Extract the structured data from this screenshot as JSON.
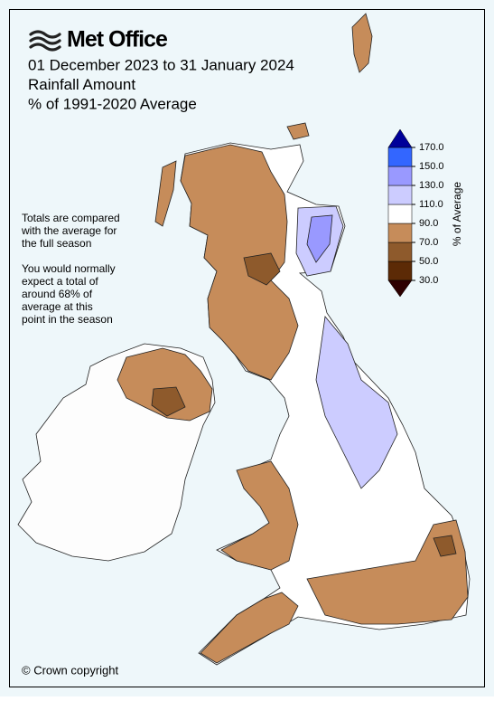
{
  "header": {
    "logo": "Met Office",
    "title_lines": [
      "01 December 2023 to 31 January 2024",
      "Rainfall Amount",
      "% of 1991-2020 Average"
    ]
  },
  "notes": [
    [
      "Totals are compared",
      "with the average for",
      "the full season"
    ],
    [
      "You would normally",
      "expect a total of",
      "around 68% of",
      "average at this",
      "point in the season"
    ]
  ],
  "colorbar": {
    "label": "% of Average",
    "ticks": [
      {
        "value": 30,
        "label": "30.0"
      },
      {
        "value": 50,
        "label": "50.0"
      },
      {
        "value": 70,
        "label": "70.0"
      },
      {
        "value": 90,
        "label": "90.0"
      },
      {
        "value": 110,
        "label": "110.0"
      },
      {
        "value": 130,
        "label": "130.0"
      },
      {
        "value": 150,
        "label": "150.0"
      },
      {
        "value": 170,
        "label": "170.0"
      }
    ],
    "colors": [
      "#5c2a06",
      "#8e5a2c",
      "#c68c5a",
      "#ffffff",
      "#ccccff",
      "#9999ff",
      "#3366ff"
    ],
    "under_color": "#2e0000",
    "over_color": "#000099"
  },
  "footer": {
    "copyright": "© Crown copyright"
  }
}
